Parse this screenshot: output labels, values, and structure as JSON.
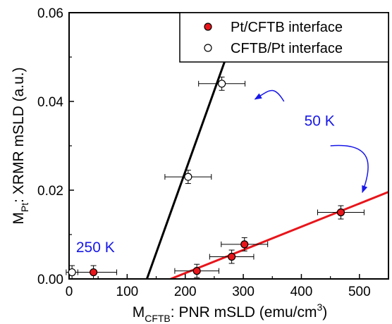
{
  "chart_data": {
    "type": "scatter",
    "xlabel": {
      "main": "M",
      "sub": "CFTB",
      "rest": ": PNR mSLD (emu/cm",
      "sup": "3",
      "close": ")"
    },
    "ylabel": {
      "main": "M",
      "sub": "Pt",
      "rest": ": XRMR mSLD (a.u.)"
    },
    "xlim": [
      0,
      550
    ],
    "ylim": [
      0,
      0.06
    ],
    "x_ticks": [
      0,
      100,
      200,
      300,
      400,
      500
    ],
    "x_tick_labels": [
      "0",
      "100",
      "200",
      "300",
      "400",
      "500"
    ],
    "y_ticks": [
      0,
      0.02,
      0.04,
      0.06
    ],
    "y_tick_labels": [
      "0.00",
      "0.02",
      "0.04",
      "0.06"
    ],
    "legend_position": "top-right",
    "series": [
      {
        "name": "Pt/CFTB interface",
        "marker": "filled-circle",
        "color": "#e8151b",
        "points": [
          {
            "x": 42,
            "y": 0.0015,
            "xerr": 40,
            "yerr": 0.0015
          },
          {
            "x": 220,
            "y": 0.0018,
            "xerr": 38,
            "yerr": 0.0015
          },
          {
            "x": 280,
            "y": 0.005,
            "xerr": 38,
            "yerr": 0.0015
          },
          {
            "x": 302,
            "y": 0.0078,
            "xerr": 40,
            "yerr": 0.0015
          },
          {
            "x": 468,
            "y": 0.015,
            "xerr": 40,
            "yerr": 0.0015
          }
        ],
        "fit_line": {
          "color": "#e8151b",
          "x": [
            175,
            550
          ],
          "y": [
            0,
            0.0196
          ]
        }
      },
      {
        "name": "CFTB/Pt interface",
        "marker": "open-circle",
        "color": "#000000",
        "points": [
          {
            "x": 5,
            "y": 0.0015,
            "xerr": 10,
            "yerr": 0.0015
          },
          {
            "x": 205,
            "y": 0.023,
            "xerr": 40,
            "yerr": 0.0015
          },
          {
            "x": 263,
            "y": 0.044,
            "xerr": 40,
            "yerr": 0.0015
          }
        ],
        "fit_line": {
          "color": "#000000",
          "x": [
            134,
            298
          ],
          "y": [
            0,
            0.06
          ]
        }
      }
    ],
    "annotations": [
      {
        "text": "50 K",
        "color": "#1818e8",
        "at": {
          "x": 405,
          "y": 0.0345
        }
      },
      {
        "text": "250 K",
        "color": "#1818e8",
        "at": {
          "x": 12,
          "y": 0.006
        }
      }
    ],
    "arrows": [
      {
        "color": "#1818e8",
        "from": {
          "x": 370,
          "y": 0.04
        },
        "to": {
          "x": 320,
          "y": 0.0405
        }
      },
      {
        "color": "#1818e8",
        "from": {
          "x": 450,
          "y": 0.03
        },
        "to": {
          "x": 505,
          "y": 0.0195
        }
      }
    ]
  }
}
